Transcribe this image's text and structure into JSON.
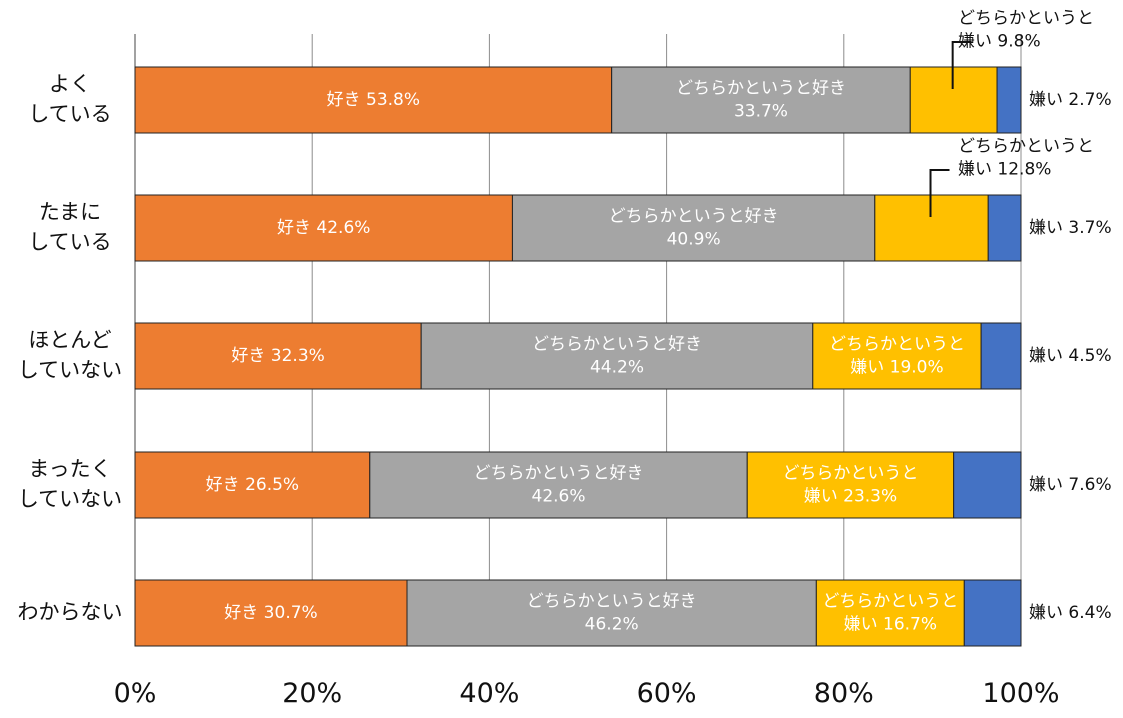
{
  "chart_data": {
    "type": "bar",
    "orientation": "horizontal",
    "stacked": true,
    "categories": [
      "よく\nしている",
      "たまに\nしている",
      "ほとんど\nしていない",
      "まったく\nしていない",
      "わからない"
    ],
    "series": [
      {
        "name": "好き",
        "color": "#ED7D31",
        "values": [
          53.8,
          42.6,
          32.3,
          26.5,
          30.7
        ],
        "labels": [
          "好き 53.8%",
          "好き 42.6%",
          "好き 32.3%",
          "好き 26.5%",
          "好き 30.7%"
        ]
      },
      {
        "name": "どちらかというと好き",
        "color": "#A5A5A5",
        "values": [
          33.7,
          40.9,
          44.2,
          42.6,
          46.2
        ],
        "labels": [
          "どちらかというと好き\n33.7%",
          "どちらかというと好き\n40.9%",
          "どちらかというと好き\n44.2%",
          "どちらかというと好き\n42.6%",
          "どちらかというと好き\n46.2%"
        ]
      },
      {
        "name": "どちらかというと嫌い",
        "color": "#FFC000",
        "values": [
          9.8,
          12.8,
          19.0,
          23.3,
          16.7
        ],
        "labels": [
          "どちらかというと\n嫌い 9.8%",
          "どちらかというと\n嫌い 12.8%",
          "どちらかというと\n嫌い 19.0%",
          "どちらかというと\n嫌い 23.3%",
          "どちらかというと\n嫌い 16.7%"
        ]
      },
      {
        "name": "嫌い",
        "color": "#4472C4",
        "values": [
          2.7,
          3.7,
          4.5,
          7.6,
          6.4
        ],
        "labels": [
          "嫌い 2.7%",
          "嫌い 3.7%",
          "嫌い 4.5%",
          "嫌い 7.6%",
          "嫌い 6.4%"
        ]
      }
    ],
    "xlim": [
      0,
      100
    ],
    "xticks": [
      "0%",
      "20%",
      "40%",
      "60%",
      "80%",
      "100%"
    ],
    "grid": true,
    "legend": "none",
    "title": "",
    "xlabel": "",
    "ylabel": ""
  }
}
